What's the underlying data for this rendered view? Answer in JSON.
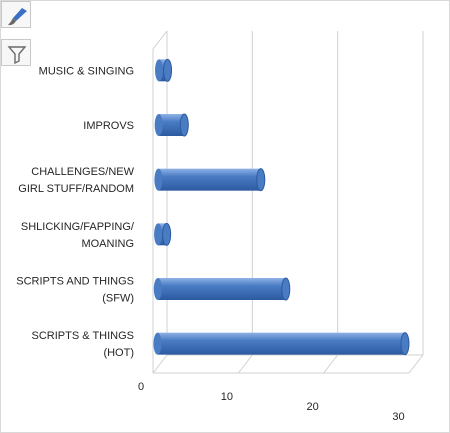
{
  "toolbar": {
    "style_button_icon": "paintbrush-icon",
    "filter_button_icon": "funnel-filter-icon"
  },
  "chart_data": {
    "type": "bar",
    "orientation": "horizontal",
    "style": "3d-cylinder",
    "title": "",
    "xlabel": "",
    "ylabel": "",
    "categories": [
      "MUSIC & SINGING",
      "IMPROVS",
      "CHALLENGES/NEW GIRL STUFF/RANDOM",
      "SHLICKING/FAPPING/ MOANING",
      "SCRIPTS AND THINGS (SFW)",
      "SCRIPTS & THINGS (HOT)"
    ],
    "category_label_lines": [
      [
        "MUSIC & SINGING"
      ],
      [
        "IMPROVS"
      ],
      [
        "CHALLENGES/NEW",
        "GIRL STUFF/RANDOM"
      ],
      [
        "SHLICKING/FAPPING/",
        "MOANING"
      ],
      [
        "SCRIPTS AND THINGS",
        "(SFW)"
      ],
      [
        "SCRIPTS & THINGS",
        "(HOT)"
      ]
    ],
    "values": [
      1,
      3,
      12,
      1,
      15,
      29
    ],
    "xlim": [
      0,
      30
    ],
    "ticks": [
      "0",
      "10",
      "20",
      "30"
    ],
    "tick_values": [
      0,
      10,
      20,
      30
    ],
    "grid": true,
    "legend": false,
    "bar_color": "#4a7cc4",
    "bar_dark_color": "#2c5aa0",
    "bar_light_color": "#8fb2e6"
  }
}
